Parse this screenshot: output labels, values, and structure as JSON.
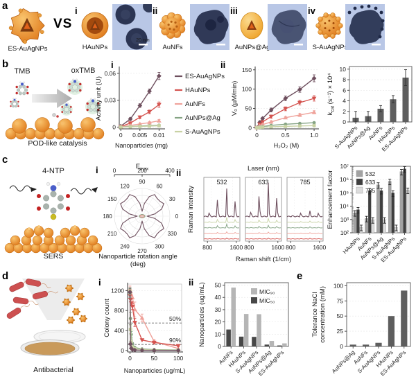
{
  "panels": {
    "a": "a",
    "b": "b",
    "c": "c",
    "d": "d",
    "e": "e"
  },
  "colors": {
    "accent_orange": "#e8872b",
    "bar_gray": "#5e5e5e",
    "tem_bg": "#b9c7e6",
    "series": {
      "ES-AuAgNPs": "#6e4f5e",
      "HAuNPs": "#d4534f",
      "AuNFs": "#efa29a",
      "AuNPs@Ag": "#84a383",
      "S-AuAgNPs": "#c8d2a4"
    }
  },
  "panel_a": {
    "vs": "VS",
    "reference": {
      "label": "ES-AuAgNPs"
    },
    "items": [
      {
        "num": "i",
        "label": "HAuNPs",
        "scalebar": "20 nm"
      },
      {
        "num": "ii",
        "label": "AuNFs"
      },
      {
        "num": "iii",
        "label": "AuNPs@Ag"
      },
      {
        "num": "iv",
        "label": "S-AuAgNPs"
      }
    ]
  },
  "panel_b": {
    "num_i": "i",
    "num_ii": "ii",
    "tmb": "TMB",
    "oxtmb": "oxTMB",
    "caption": "POD-like catalysis"
  },
  "panel_c": {
    "num_i": "i",
    "num_ii": "ii",
    "molecule": "4-NTP",
    "caption": "SERS",
    "polar_caption": "Nanoparticle rotation angle (deg)"
  },
  "panel_d": {
    "num_i": "i",
    "num_ii": "ii",
    "caption": "Antibacterial"
  },
  "chart_data": [
    {
      "id": "activity",
      "type": "line",
      "xlabel": "Nanoparticles (mg)",
      "ylabel": "Activity unit (U)",
      "xlim": [
        -0.0004,
        0.0112
      ],
      "ylim": [
        -0.002,
        0.066
      ],
      "xticks": [
        [
          0,
          "0"
        ],
        [
          0.005,
          "0.005"
        ],
        [
          0.01,
          "0.01"
        ]
      ],
      "yticks": [
        [
          0,
          "0"
        ],
        [
          0.03,
          "0.03"
        ],
        [
          0.06,
          "0.06"
        ]
      ],
      "x": [
        0,
        0.0025,
        0.005,
        0.0075,
        0.01
      ],
      "legend": true,
      "series": [
        {
          "name": "ES-AuAgNPs",
          "color": "#6e4f5e",
          "marker": "diamond",
          "values": [
            0.001,
            0.009,
            0.024,
            0.04,
            0.057
          ],
          "errors": [
            0.001,
            0.0015,
            0.002,
            0.0025,
            0.004
          ]
        },
        {
          "name": "HAuNPs",
          "color": "#d4534f",
          "marker": "tri-down",
          "values": [
            0.0005,
            0.0045,
            0.011,
            0.017,
            0.025
          ],
          "errors": [
            0.0008,
            0.001,
            0.0015,
            0.002,
            0.003
          ]
        },
        {
          "name": "AuNFs",
          "color": "#efa29a",
          "marker": "tri-up",
          "values": [
            0.0002,
            0.0018,
            0.0035,
            0.005,
            0.007
          ],
          "errors": [
            0,
            0.0008,
            0.0008,
            0.001,
            0.0015
          ]
        },
        {
          "name": "AuNPs@Ag",
          "color": "#84a383",
          "marker": "circle",
          "values": [
            0.0001,
            0.0006,
            0.0011,
            0.0016,
            0.002
          ],
          "errors": [
            0,
            0,
            0,
            0,
            0
          ]
        },
        {
          "name": "S-AuAgNPs",
          "color": "#c8d2a4",
          "marker": "square",
          "values": [
            0.0001,
            0.0004,
            0.0008,
            0.0011,
            0.0015
          ],
          "errors": [
            0,
            0,
            0,
            0,
            0
          ]
        }
      ]
    },
    {
      "id": "v0",
      "type": "line",
      "xlabel": "H₂O₂ (M)",
      "ylabel": "V₀ (µM/min)",
      "xlim": [
        -0.03,
        1.06
      ],
      "ylim": [
        -3,
        155
      ],
      "xticks": [
        [
          0,
          "0"
        ],
        [
          0.5,
          "0.5"
        ],
        [
          1,
          "1.0"
        ]
      ],
      "yticks": [
        [
          0,
          "0"
        ],
        [
          50,
          "50"
        ],
        [
          100,
          "100"
        ],
        [
          150,
          "150"
        ]
      ],
      "x": [
        0,
        0.05,
        0.1,
        0.25,
        0.5,
        0.75,
        1.0
      ],
      "series": [
        {
          "name": "ES-AuAgNPs",
          "color": "#6e4f5e",
          "marker": "diamond",
          "values": [
            0,
            14,
            24,
            46,
            76,
            99,
            128
          ],
          "errors": [
            0,
            3,
            3,
            5,
            6,
            7,
            9
          ]
        },
        {
          "name": "HAuNPs",
          "color": "#d4534f",
          "marker": "tri-down",
          "values": [
            0,
            9,
            15,
            29,
            49,
            65,
            76
          ],
          "errors": [
            0,
            2,
            3,
            4,
            5,
            6,
            7
          ]
        },
        {
          "name": "AuNFs",
          "color": "#efa29a",
          "marker": "tri-up",
          "values": [
            0,
            5,
            8,
            15,
            26,
            33,
            40
          ],
          "errors": [
            0,
            1,
            2,
            3,
            3,
            4,
            4
          ]
        },
        {
          "name": "AuNPs@Ag",
          "color": "#84a383",
          "marker": "circle",
          "values": [
            0,
            2,
            3,
            6,
            9,
            11,
            13
          ],
          "errors": [
            0,
            1,
            1,
            1,
            2,
            2,
            2
          ]
        },
        {
          "name": "S-AuAgNPs",
          "color": "#c8d2a4",
          "marker": "square",
          "values": [
            0,
            1,
            1.5,
            2.5,
            3.5,
            4.5,
            5.5
          ],
          "errors": [
            0,
            0,
            0,
            0,
            0,
            0,
            0
          ]
        }
      ]
    },
    {
      "id": "kcat",
      "type": "bar",
      "ylabel_rich": [
        [
          "k",
          0
        ],
        [
          "cat",
          -1
        ],
        [
          " (s⁻¹) × 10⁴",
          0
        ]
      ],
      "categories": [
        "S-AuAgNPs",
        "AuNPs@Ag",
        "AuNFs",
        "HAuNPs",
        "ES-AuAgNPs"
      ],
      "values": [
        0.8,
        1.1,
        2.5,
        4.3,
        8.4
      ],
      "errors": [
        1.2,
        0.9,
        0.6,
        0.7,
        1.5
      ],
      "yticks": [
        [
          0,
          "0"
        ],
        [
          2,
          "2"
        ],
        [
          4,
          "4"
        ],
        [
          6,
          "6"
        ],
        [
          8,
          "8"
        ],
        [
          10,
          "10"
        ]
      ],
      "ylim": [
        0,
        10.5
      ],
      "color": "#5e5e5e"
    },
    {
      "id": "polar",
      "type": "polar",
      "title_rich": [
        [
          "E",
          0
        ],
        [
          "max",
          -1
        ]
      ],
      "scale_ticks": [
        [
          0,
          "0"
        ],
        [
          200,
          "200"
        ],
        [
          400,
          "400"
        ]
      ],
      "rmax": 400,
      "grid_r": [
        100,
        200,
        300,
        400
      ],
      "angle_labels": [
        0,
        30,
        60,
        90,
        120,
        150,
        180,
        210,
        240,
        270,
        300,
        330
      ],
      "series": [
        {
          "name": "ES-AuAgNPs",
          "color": "#6e4f5e",
          "fill": false,
          "r": [
            70,
            185,
            300,
            360,
            335,
            335,
            360,
            300,
            185,
            70,
            185,
            300,
            360,
            335,
            335,
            360,
            300,
            185,
            70,
            185,
            300,
            360,
            335,
            335,
            360,
            300,
            185,
            70,
            185,
            300,
            360,
            335,
            335,
            360,
            300,
            185
          ]
        },
        {
          "name": "AuNPs@Ag",
          "color": "#84a383",
          "fill": true,
          "r": [
            42,
            40,
            36,
            32,
            29,
            27,
            26,
            25,
            25,
            25,
            25,
            25,
            26,
            27,
            29,
            32,
            36,
            40,
            42,
            40,
            36,
            32,
            29,
            27,
            26,
            25,
            25,
            25,
            25,
            25,
            26,
            27,
            29,
            32,
            36,
            40
          ]
        },
        {
          "name": "AuNFs",
          "color": "#efa29a",
          "fill": true,
          "r": [
            30,
            28,
            25,
            22,
            20,
            19,
            18,
            17,
            17,
            17,
            17,
            17,
            18,
            19,
            20,
            22,
            25,
            28,
            30,
            28,
            25,
            22,
            20,
            19,
            18,
            17,
            17,
            17,
            17,
            17,
            18,
            19,
            20,
            22,
            25,
            28
          ]
        }
      ]
    },
    {
      "id": "raman",
      "type": "raman",
      "title": "Laser (nm)",
      "ylabel": "Raman intensity",
      "xlabel": "Raman shift (1/cm)",
      "xlim": [
        700,
        1700
      ],
      "xticks": [
        [
          800,
          "800"
        ],
        [
          1600,
          "1600"
        ]
      ],
      "peaks": [
        {
          "x": 855,
          "w": 14,
          "rel": 0.18
        },
        {
          "x": 1080,
          "w": 13,
          "rel": 0.6
        },
        {
          "x": 1112,
          "w": 9,
          "rel": 0.24
        },
        {
          "x": 1340,
          "w": 14,
          "rel": 1.0
        },
        {
          "x": 1575,
          "w": 13,
          "rel": 0.8
        }
      ],
      "trace_order": [
        "ES-AuAgNPs",
        "S-AuAgNPs",
        "AuNPs@Ag",
        "AuNFs",
        "HAuNPs"
      ],
      "trace_colors": [
        "#6e4f5e",
        "#c8d2a4",
        "#84a383",
        "#efa29a",
        "#d4534f"
      ],
      "panels": [
        {
          "label": "532",
          "amps": [
            46,
            8,
            6,
            2.5,
            1.2
          ]
        },
        {
          "label": "633",
          "amps": [
            56,
            6,
            4,
            2,
            1.2
          ]
        },
        {
          "label": "785",
          "amps": [
            9,
            2,
            1.5,
            1,
            0.8
          ]
        }
      ]
    },
    {
      "id": "ef",
      "type": "logbar",
      "ylabel": "Enhancement factor",
      "categories": [
        "HAuNPs",
        "AuNFs",
        "AuNPs@Ag",
        "S-AuAgNPs",
        "ES-AuAgNPs"
      ],
      "exp_range": [
        2,
        7
      ],
      "ytick_labels": [
        "10²",
        "10³",
        "10⁴",
        "10⁵",
        "10⁶",
        "10⁷"
      ],
      "err_frac": 0.45,
      "series": [
        {
          "name": "532",
          "color": "#a2a2a2",
          "values": [
            3200,
            1200,
            400000,
            750000,
            4000000
          ]
        },
        {
          "name": "633",
          "color": "#3f3f3f",
          "values": [
            5500,
            150000,
            150000,
            100000,
            6500000
          ]
        },
        {
          "name": "785",
          "color": "#dcdcdc",
          "values": [
            260,
            950,
            950,
            260,
            160000
          ]
        }
      ]
    },
    {
      "id": "colony",
      "type": "line",
      "xlabel": "Nanoparticles (ug/mL)",
      "ylabel": "Colony count",
      "xlim": [
        -5,
        107
      ],
      "ylim": [
        -30,
        1330
      ],
      "box": true,
      "xticks": [
        [
          0,
          "0"
        ],
        [
          50,
          "50"
        ],
        [
          100,
          "100"
        ]
      ],
      "yticks": [
        [
          0,
          "0"
        ],
        [
          400,
          "400"
        ],
        [
          800,
          "800"
        ],
        [
          1200,
          "1200"
        ]
      ],
      "x": [
        0,
        1,
        2.5,
        5,
        10,
        25,
        50,
        100
      ],
      "hlines": [
        {
          "y": 550,
          "label": "50%"
        },
        {
          "y": 120,
          "label": "90%"
        }
      ],
      "series": [
        {
          "name": "AuNFs",
          "color": "#efa29a",
          "marker": "tri-up",
          "values": [
            1230,
            1180,
            1120,
            1060,
            820,
            650,
            180,
            40
          ],
          "errors": [
            60,
            0,
            0,
            0,
            150,
            80,
            40,
            0
          ]
        },
        {
          "name": "HAuNPs",
          "color": "#d4534f",
          "marker": "tri-down",
          "values": [
            1100,
            1020,
            950,
            880,
            560,
            210,
            160,
            95
          ],
          "errors": [
            50,
            0,
            0,
            60,
            80,
            0,
            30,
            20
          ]
        },
        {
          "name": "AuNPs@Ag",
          "color": "#84a383",
          "marker": "circle",
          "values": [
            1150,
            640,
            320,
            140,
            60,
            30,
            18,
            10
          ],
          "errors": [
            90,
            120,
            60,
            0,
            0,
            0,
            0,
            0
          ]
        },
        {
          "name": "S-AuAgNPs",
          "color": "#c8d2a4",
          "marker": "square",
          "values": [
            1190,
            420,
            170,
            70,
            35,
            18,
            10,
            6
          ],
          "errors": [
            70,
            80,
            0,
            0,
            0,
            0,
            0,
            0
          ]
        },
        {
          "name": "ES-AuAgNPs",
          "color": "#6e4f5e",
          "marker": "diamond",
          "values": [
            1170,
            130,
            45,
            18,
            8,
            4,
            2,
            1
          ],
          "errors": [
            80,
            40,
            0,
            0,
            0,
            0,
            0,
            0
          ]
        }
      ]
    },
    {
      "id": "mic",
      "type": "groupbar",
      "ylabel": "Nanoparticles (ug/mL)",
      "categories": [
        "AuNFs",
        "HAuNPs",
        "S-AuAgNPs",
        "AuNPs@Ag",
        "ES-AuAgNPs"
      ],
      "yticks": [
        [
          0,
          "0"
        ],
        [
          10,
          "10"
        ],
        [
          20,
          "20"
        ],
        [
          30,
          "30"
        ],
        [
          40,
          "40"
        ],
        [
          50,
          "50"
        ]
      ],
      "ylim": [
        0,
        52
      ],
      "series": [
        {
          "name": "MIC₅₀",
          "color": "#474747",
          "values": [
            13.8,
            8,
            7.8,
            1.5,
            0.8
          ]
        },
        {
          "name": "MIC₉₀",
          "color": "#b5b5b5",
          "values": [
            48,
            26.5,
            26.3,
            4.5,
            2.5
          ]
        }
      ],
      "legend_order": [
        1,
        0
      ]
    },
    {
      "id": "nacl",
      "type": "bar",
      "ylabel_lines": [
        "Tolerance NaCl",
        "concentration (mM)"
      ],
      "categories": [
        "AuNPs@Ag",
        "AuNFs",
        "S-AuAgNPs",
        "HAuNPs",
        "ES-AuAgNPs"
      ],
      "values": [
        3,
        3,
        6,
        50,
        92
      ],
      "errors": [
        0,
        0,
        0,
        0,
        0
      ],
      "yticks": [
        [
          0,
          "0"
        ],
        [
          25,
          "25"
        ],
        [
          50,
          "50"
        ],
        [
          75,
          "75"
        ],
        [
          100,
          "100"
        ]
      ],
      "ylim": [
        0,
        105
      ],
      "color": "#5e5e5e"
    }
  ]
}
